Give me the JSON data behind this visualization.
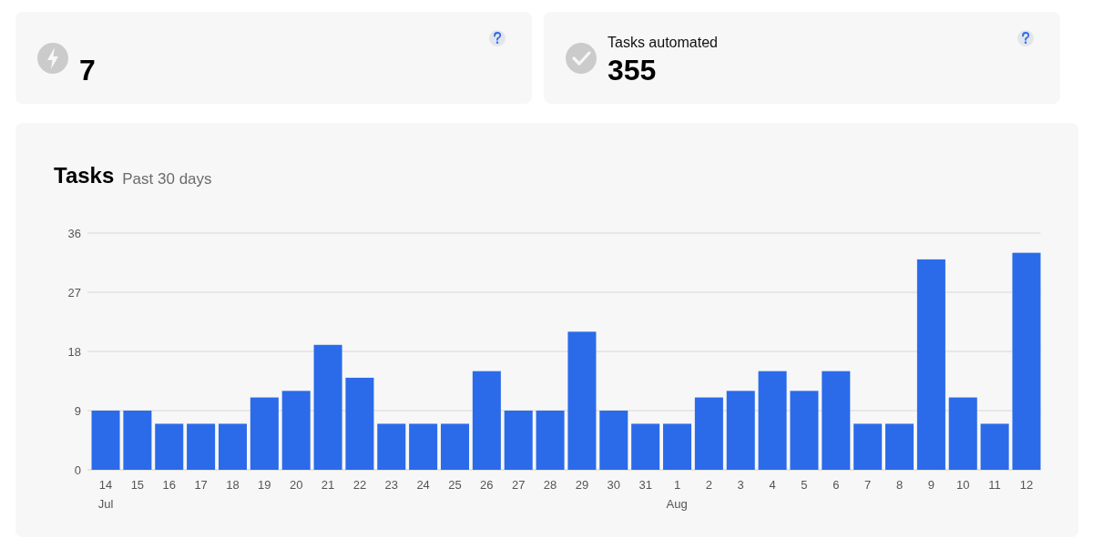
{
  "chart_data": [
    {
      "type": "other",
      "annotations": [
        "7"
      ]
    },
    {
      "type": "other",
      "title": "Tasks automated",
      "annotations": [
        "355"
      ]
    },
    {
      "type": "bar",
      "title": "Tasks",
      "subtitle": "Past 30 days",
      "categories": [
        "14 Jul",
        "15",
        "16",
        "17",
        "18",
        "19",
        "20",
        "21",
        "22",
        "23",
        "24",
        "25",
        "26",
        "27",
        "28",
        "29",
        "30",
        "31",
        "1 Aug",
        "2",
        "3",
        "4",
        "5",
        "6",
        "7",
        "8",
        "9",
        "10",
        "11",
        "12"
      ],
      "values": [
        9,
        9,
        7,
        7,
        7,
        11,
        12,
        19,
        14,
        7,
        7,
        7,
        15,
        9,
        9,
        21,
        9,
        7,
        7,
        11,
        12,
        15,
        12,
        15,
        7,
        7,
        32,
        11,
        7,
        33
      ],
      "color": "#2b6bea",
      "ylim": [
        0,
        36
      ],
      "yticks": [
        0,
        9,
        18,
        27,
        36
      ],
      "grid": "y"
    }
  ]
}
